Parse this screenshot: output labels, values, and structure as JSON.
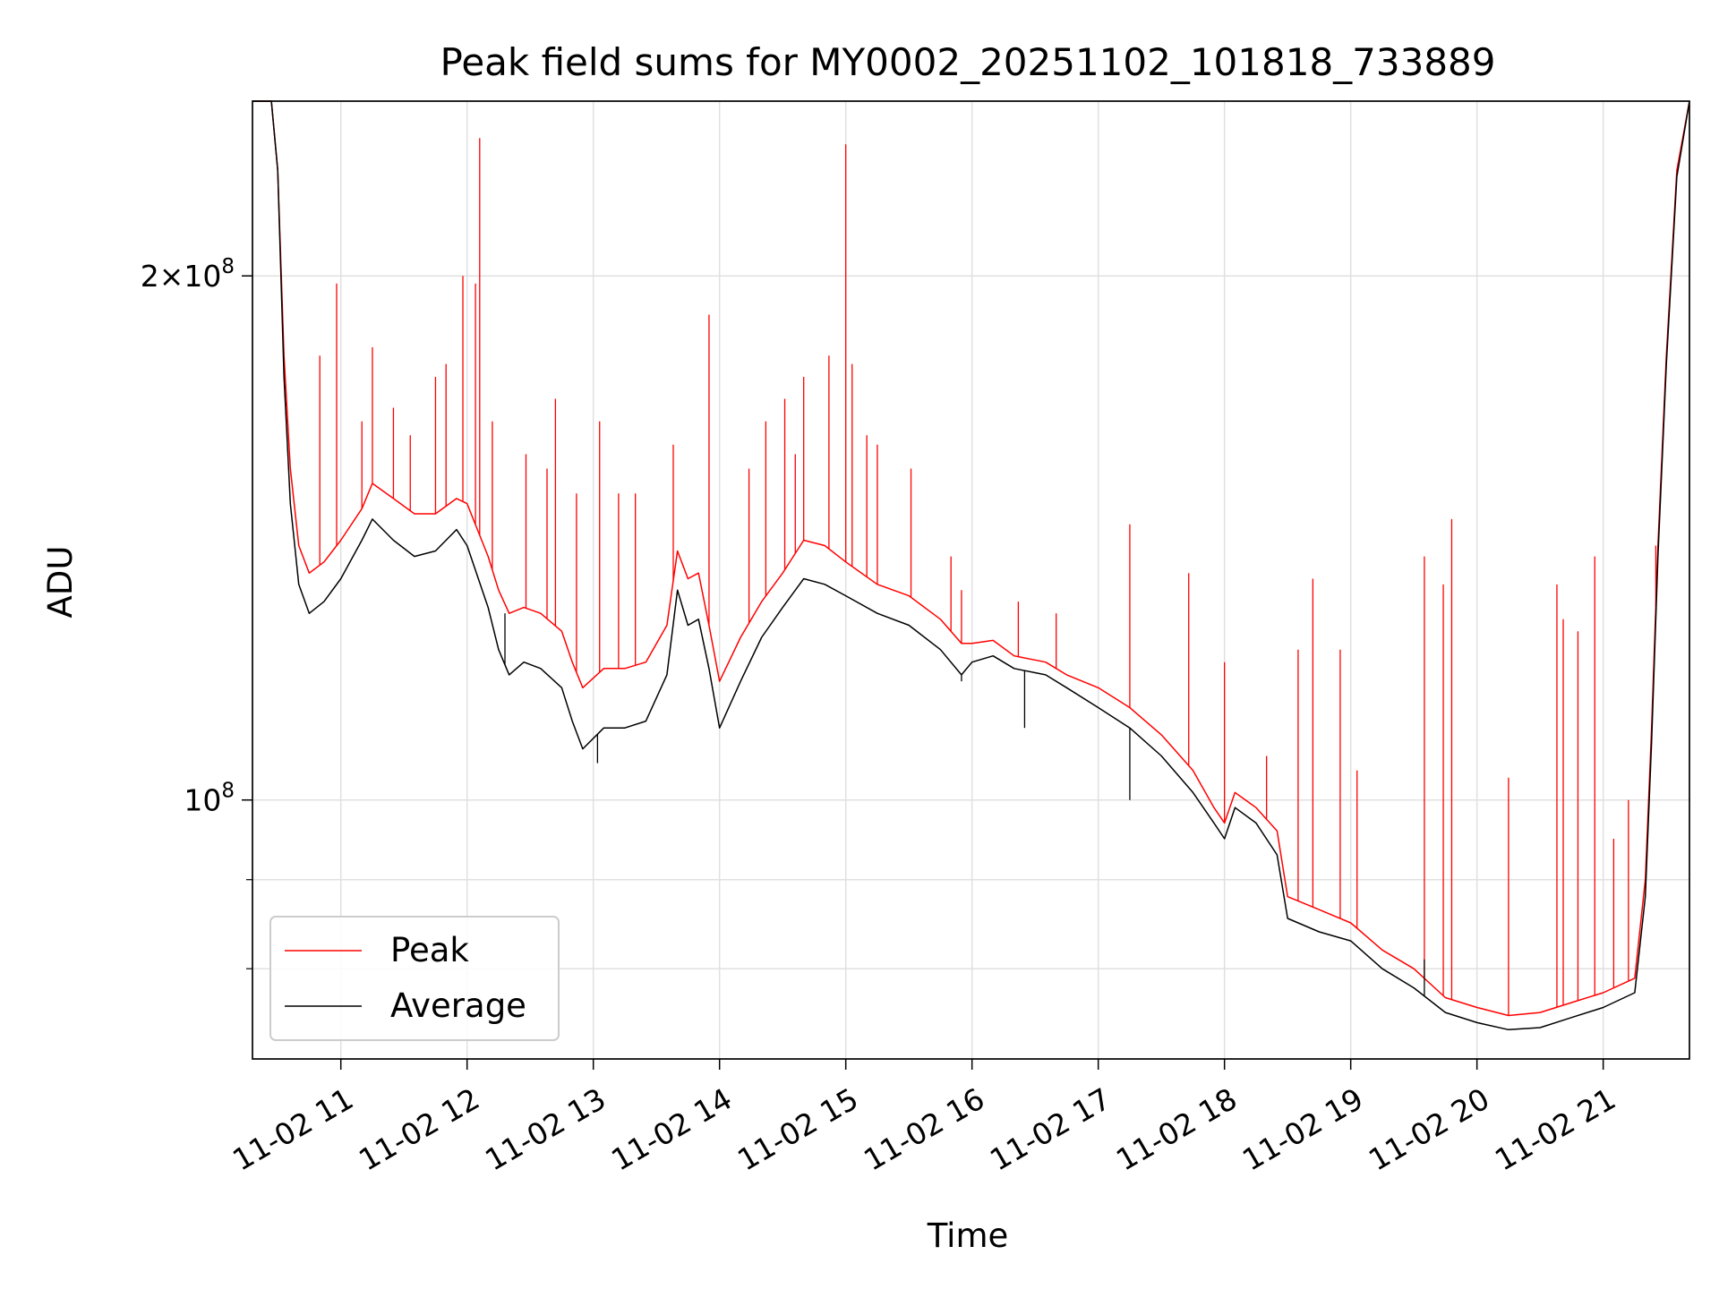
{
  "colors": {
    "peak": "#ff0000",
    "average": "#000000",
    "grid": "#e0e0e0",
    "axis": "#000000"
  },
  "chart_data": {
    "type": "line",
    "title": "Peak field sums for MY0002_20251102_101818_733889",
    "xlabel": "Time",
    "ylabel": "ADU",
    "yscale": "log",
    "xlim": [
      "2025-11-02 10:18",
      "2025-11-02 21:41"
    ],
    "ylim": [
      71000000,
      252000000
    ],
    "x_ticks": [
      "11-02 11",
      "11-02 12",
      "11-02 13",
      "11-02 14",
      "11-02 15",
      "11-02 16",
      "11-02 17",
      "11-02 18",
      "11-02 19",
      "11-02 20",
      "11-02 21"
    ],
    "x_tick_times": [
      "2025-11-02 11:00",
      "2025-11-02 12:00",
      "2025-11-02 13:00",
      "2025-11-02 14:00",
      "2025-11-02 15:00",
      "2025-11-02 16:00",
      "2025-11-02 17:00",
      "2025-11-02 18:00",
      "2025-11-02 19:00",
      "2025-11-02 20:00",
      "2025-11-02 21:00"
    ],
    "y_ticks": [
      {
        "value": 100000000,
        "base": "10",
        "exp": "8",
        "mult": ""
      },
      {
        "value": 200000000,
        "base": "10",
        "exp": "8",
        "mult": "2×"
      }
    ],
    "y_minor_ticks": [
      80000000,
      90000000,
      300000000
    ],
    "grid": true,
    "legend_position": "lower-left",
    "series": [
      {
        "name": "Peak",
        "color": "#ff0000",
        "points": [
          [
            "2025-11-02 10:18",
            252000000
          ],
          [
            "2025-11-02 10:27",
            252000000
          ],
          [
            "2025-11-02 10:30",
            230000000
          ],
          [
            "2025-11-02 10:33",
            180000000
          ],
          [
            "2025-11-02 10:36",
            155000000
          ],
          [
            "2025-11-02 10:40",
            140000000
          ],
          [
            "2025-11-02 10:45",
            135000000
          ],
          [
            "2025-11-02 10:52",
            137000000
          ],
          [
            "2025-11-02 11:00",
            141000000
          ],
          [
            "2025-11-02 11:10",
            147000000
          ],
          [
            "2025-11-02 11:15",
            152000000
          ],
          [
            "2025-11-02 11:25",
            149000000
          ],
          [
            "2025-11-02 11:35",
            146000000
          ],
          [
            "2025-11-02 11:45",
            146000000
          ],
          [
            "2025-11-02 11:55",
            149000000
          ],
          [
            "2025-11-02 12:00",
            148000000
          ],
          [
            "2025-11-02 12:10",
            138000000
          ],
          [
            "2025-11-02 12:15",
            132000000
          ],
          [
            "2025-11-02 12:20",
            128000000
          ],
          [
            "2025-11-02 12:27",
            129000000
          ],
          [
            "2025-11-02 12:35",
            128000000
          ],
          [
            "2025-11-02 12:45",
            125000000
          ],
          [
            "2025-11-02 12:50",
            120000000
          ],
          [
            "2025-11-02 12:55",
            116000000
          ],
          [
            "2025-11-02 13:05",
            119000000
          ],
          [
            "2025-11-02 13:15",
            119000000
          ],
          [
            "2025-11-02 13:25",
            120000000
          ],
          [
            "2025-11-02 13:35",
            126000000
          ],
          [
            "2025-11-02 13:40",
            139000000
          ],
          [
            "2025-11-02 13:45",
            134000000
          ],
          [
            "2025-11-02 13:50",
            135000000
          ],
          [
            "2025-11-02 13:55",
            126000000
          ],
          [
            "2025-11-02 14:00",
            117000000
          ],
          [
            "2025-11-02 14:10",
            124000000
          ],
          [
            "2025-11-02 14:20",
            130000000
          ],
          [
            "2025-11-02 14:30",
            135000000
          ],
          [
            "2025-11-02 14:40",
            141000000
          ],
          [
            "2025-11-02 14:50",
            140000000
          ],
          [
            "2025-11-02 15:00",
            137000000
          ],
          [
            "2025-11-02 15:15",
            133000000
          ],
          [
            "2025-11-02 15:30",
            131000000
          ],
          [
            "2025-11-02 15:45",
            127000000
          ],
          [
            "2025-11-02 15:55",
            123000000
          ],
          [
            "2025-11-02 16:00",
            123000000
          ],
          [
            "2025-11-02 16:10",
            123500000
          ],
          [
            "2025-11-02 16:20",
            121000000
          ],
          [
            "2025-11-02 16:35",
            120000000
          ],
          [
            "2025-11-02 16:45",
            118000000
          ],
          [
            "2025-11-02 17:00",
            116000000
          ],
          [
            "2025-11-02 17:15",
            113000000
          ],
          [
            "2025-11-02 17:30",
            109000000
          ],
          [
            "2025-11-02 17:45",
            104000000
          ],
          [
            "2025-11-02 17:55",
            99000000
          ],
          [
            "2025-11-02 18:00",
            97000000
          ],
          [
            "2025-11-02 18:05",
            101000000
          ],
          [
            "2025-11-02 18:15",
            99000000
          ],
          [
            "2025-11-02 18:25",
            96000000
          ],
          [
            "2025-11-02 18:30",
            88000000
          ],
          [
            "2025-11-02 18:45",
            86500000
          ],
          [
            "2025-11-02 19:00",
            85000000
          ],
          [
            "2025-11-02 19:15",
            82000000
          ],
          [
            "2025-11-02 19:30",
            80000000
          ],
          [
            "2025-11-02 19:45",
            77000000
          ],
          [
            "2025-11-02 20:00",
            76000000
          ],
          [
            "2025-11-02 20:15",
            75200000
          ],
          [
            "2025-11-02 20:30",
            75500000
          ],
          [
            "2025-11-02 20:45",
            76500000
          ],
          [
            "2025-11-02 21:00",
            77500000
          ],
          [
            "2025-11-02 21:15",
            79000000
          ],
          [
            "2025-11-02 21:20",
            90000000
          ],
          [
            "2025-11-02 21:23",
            110000000
          ],
          [
            "2025-11-02 21:26",
            140000000
          ],
          [
            "2025-11-02 21:30",
            180000000
          ],
          [
            "2025-11-02 21:35",
            230000000
          ],
          [
            "2025-11-02 21:41",
            252000000
          ]
        ]
      },
      {
        "name": "Average",
        "color": "#000000",
        "points": [
          [
            "2025-11-02 10:18",
            252000000
          ],
          [
            "2025-11-02 10:27",
            252000000
          ],
          [
            "2025-11-02 10:30",
            230000000
          ],
          [
            "2025-11-02 10:33",
            175000000
          ],
          [
            "2025-11-02 10:36",
            148000000
          ],
          [
            "2025-11-02 10:40",
            133000000
          ],
          [
            "2025-11-02 10:45",
            128000000
          ],
          [
            "2025-11-02 10:52",
            130000000
          ],
          [
            "2025-11-02 11:00",
            134000000
          ],
          [
            "2025-11-02 11:10",
            141000000
          ],
          [
            "2025-11-02 11:15",
            145000000
          ],
          [
            "2025-11-02 11:25",
            141000000
          ],
          [
            "2025-11-02 11:35",
            138000000
          ],
          [
            "2025-11-02 11:45",
            139000000
          ],
          [
            "2025-11-02 11:55",
            143000000
          ],
          [
            "2025-11-02 12:00",
            140000000
          ],
          [
            "2025-11-02 12:10",
            129000000
          ],
          [
            "2025-11-02 12:15",
            122000000
          ],
          [
            "2025-11-02 12:20",
            118000000
          ],
          [
            "2025-11-02 12:27",
            120000000
          ],
          [
            "2025-11-02 12:35",
            119000000
          ],
          [
            "2025-11-02 12:45",
            116000000
          ],
          [
            "2025-11-02 12:50",
            111000000
          ],
          [
            "2025-11-02 12:55",
            107000000
          ],
          [
            "2025-11-02 13:05",
            110000000
          ],
          [
            "2025-11-02 13:15",
            110000000
          ],
          [
            "2025-11-02 13:25",
            111000000
          ],
          [
            "2025-11-02 13:35",
            118000000
          ],
          [
            "2025-11-02 13:40",
            132000000
          ],
          [
            "2025-11-02 13:45",
            126000000
          ],
          [
            "2025-11-02 13:50",
            127000000
          ],
          [
            "2025-11-02 13:55",
            119000000
          ],
          [
            "2025-11-02 14:00",
            110000000
          ],
          [
            "2025-11-02 14:10",
            117000000
          ],
          [
            "2025-11-02 14:20",
            124000000
          ],
          [
            "2025-11-02 14:30",
            129000000
          ],
          [
            "2025-11-02 14:40",
            134000000
          ],
          [
            "2025-11-02 14:50",
            133000000
          ],
          [
            "2025-11-02 15:00",
            131000000
          ],
          [
            "2025-11-02 15:15",
            128000000
          ],
          [
            "2025-11-02 15:30",
            126000000
          ],
          [
            "2025-11-02 15:45",
            122000000
          ],
          [
            "2025-11-02 15:55",
            118000000
          ],
          [
            "2025-11-02 16:00",
            120000000
          ],
          [
            "2025-11-02 16:10",
            121000000
          ],
          [
            "2025-11-02 16:20",
            119000000
          ],
          [
            "2025-11-02 16:35",
            118000000
          ],
          [
            "2025-11-02 16:45",
            116000000
          ],
          [
            "2025-11-02 17:00",
            113000000
          ],
          [
            "2025-11-02 17:15",
            110000000
          ],
          [
            "2025-11-02 17:30",
            106000000
          ],
          [
            "2025-11-02 17:45",
            101000000
          ],
          [
            "2025-11-02 17:55",
            97000000
          ],
          [
            "2025-11-02 18:00",
            95000000
          ],
          [
            "2025-11-02 18:05",
            99000000
          ],
          [
            "2025-11-02 18:15",
            97000000
          ],
          [
            "2025-11-02 18:25",
            93000000
          ],
          [
            "2025-11-02 18:30",
            85500000
          ],
          [
            "2025-11-02 18:45",
            84000000
          ],
          [
            "2025-11-02 19:00",
            83000000
          ],
          [
            "2025-11-02 19:15",
            80000000
          ],
          [
            "2025-11-02 19:30",
            78000000
          ],
          [
            "2025-11-02 19:45",
            75500000
          ],
          [
            "2025-11-02 20:00",
            74500000
          ],
          [
            "2025-11-02 20:15",
            73800000
          ],
          [
            "2025-11-02 20:30",
            74000000
          ],
          [
            "2025-11-02 20:45",
            75000000
          ],
          [
            "2025-11-02 21:00",
            76000000
          ],
          [
            "2025-11-02 21:15",
            77500000
          ],
          [
            "2025-11-02 21:20",
            88000000
          ],
          [
            "2025-11-02 21:23",
            108000000
          ],
          [
            "2025-11-02 21:26",
            138000000
          ],
          [
            "2025-11-02 21:30",
            178000000
          ],
          [
            "2025-11-02 21:35",
            228000000
          ],
          [
            "2025-11-02 21:41",
            252000000
          ]
        ]
      }
    ],
    "peak_spikes": [
      [
        "2025-11-02 10:50",
        180000000
      ],
      [
        "2025-11-02 10:58",
        198000000
      ],
      [
        "2025-11-02 11:10",
        165000000
      ],
      [
        "2025-11-02 11:15",
        182000000
      ],
      [
        "2025-11-02 11:25",
        168000000
      ],
      [
        "2025-11-02 11:33",
        162000000
      ],
      [
        "2025-11-02 11:45",
        175000000
      ],
      [
        "2025-11-02 11:50",
        178000000
      ],
      [
        "2025-11-02 11:58",
        200000000
      ],
      [
        "2025-11-02 12:04",
        198000000
      ],
      [
        "2025-11-02 12:06",
        240000000
      ],
      [
        "2025-11-02 12:12",
        165000000
      ],
      [
        "2025-11-02 12:28",
        158000000
      ],
      [
        "2025-11-02 12:38",
        155000000
      ],
      [
        "2025-11-02 12:42",
        170000000
      ],
      [
        "2025-11-02 12:52",
        150000000
      ],
      [
        "2025-11-02 13:03",
        165000000
      ],
      [
        "2025-11-02 13:12",
        150000000
      ],
      [
        "2025-11-02 13:20",
        150000000
      ],
      [
        "2025-11-02 13:38",
        160000000
      ],
      [
        "2025-11-02 13:55",
        190000000
      ],
      [
        "2025-11-02 14:14",
        155000000
      ],
      [
        "2025-11-02 14:22",
        165000000
      ],
      [
        "2025-11-02 14:31",
        170000000
      ],
      [
        "2025-11-02 14:36",
        158000000
      ],
      [
        "2025-11-02 14:40",
        175000000
      ],
      [
        "2025-11-02 14:52",
        180000000
      ],
      [
        "2025-11-02 15:00",
        238000000
      ],
      [
        "2025-11-02 15:03",
        178000000
      ],
      [
        "2025-11-02 15:10",
        162000000
      ],
      [
        "2025-11-02 15:15",
        160000000
      ],
      [
        "2025-11-02 15:31",
        155000000
      ],
      [
        "2025-11-02 15:50",
        138000000
      ],
      [
        "2025-11-02 15:55",
        132000000
      ],
      [
        "2025-11-02 16:22",
        130000000
      ],
      [
        "2025-11-02 16:40",
        128000000
      ],
      [
        "2025-11-02 17:15",
        144000000
      ],
      [
        "2025-11-02 17:43",
        135000000
      ],
      [
        "2025-11-02 18:00",
        120000000
      ],
      [
        "2025-11-02 18:20",
        106000000
      ],
      [
        "2025-11-02 18:35",
        122000000
      ],
      [
        "2025-11-02 18:42",
        134000000
      ],
      [
        "2025-11-02 18:55",
        122000000
      ],
      [
        "2025-11-02 19:03",
        104000000
      ],
      [
        "2025-11-02 19:35",
        138000000
      ],
      [
        "2025-11-02 19:44",
        133000000
      ],
      [
        "2025-11-02 19:48",
        145000000
      ],
      [
        "2025-11-02 20:15",
        103000000
      ],
      [
        "2025-11-02 20:38",
        133000000
      ],
      [
        "2025-11-02 20:41",
        127000000
      ],
      [
        "2025-11-02 20:48",
        125000000
      ],
      [
        "2025-11-02 20:56",
        138000000
      ],
      [
        "2025-11-02 21:05",
        95000000
      ],
      [
        "2025-11-02 21:12",
        100000000
      ],
      [
        "2025-11-02 21:25",
        140000000
      ]
    ],
    "average_spikes": [
      [
        "2025-11-02 12:18",
        128000000
      ],
      [
        "2025-11-02 13:02",
        105000000
      ],
      [
        "2025-11-02 15:55",
        117000000
      ],
      [
        "2025-11-02 16:25",
        110000000
      ],
      [
        "2025-11-02 17:15",
        100000000
      ],
      [
        "2025-11-02 19:35",
        81000000
      ]
    ]
  }
}
